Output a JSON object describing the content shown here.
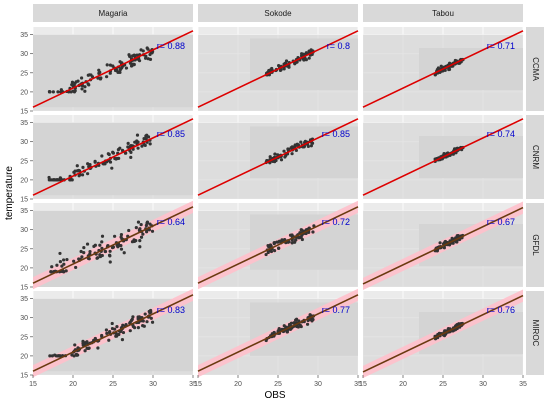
{
  "chart_data": {
    "type": "scatter",
    "xlabel": "OBS",
    "ylabel": "temperature",
    "xlim": [
      15,
      35
    ],
    "ylim": [
      15,
      37
    ],
    "x_ticks": [
      "15",
      "20",
      "25",
      "30",
      "35"
    ],
    "y_ticks": [
      "15",
      "20",
      "25",
      "30",
      "35"
    ],
    "columns": [
      "Magaria",
      "Sokode",
      "Tabou"
    ],
    "rows": [
      "CCMA",
      "CNRM",
      "GFDL",
      "MIROC"
    ],
    "colors": {
      "points": "#333333",
      "panel_bg": "#ebebeb",
      "data_range_band": "#d4d4d4",
      "fit_line": "#dd0000",
      "one_to_one_line": "#6b3a10",
      "pink_band": "#ffc0cb",
      "r_text": "#0000cc",
      "strip_bg": "#d9d9d9"
    },
    "panels": [
      {
        "column": "Magaria",
        "row": "CCMA",
        "r": "r= 0.88",
        "line": "fit",
        "obs_range": [
          17,
          30
        ],
        "model_range": [
          20,
          32
        ],
        "slope": 1.0,
        "intercept": 1.0,
        "spread": 1.6
      },
      {
        "column": "Sokode",
        "row": "CCMA",
        "r": "r= 0.8",
        "line": "fit",
        "obs_range": [
          23.5,
          29.5
        ],
        "model_range": [
          24.5,
          31
        ],
        "slope": 1.0,
        "intercept": 1.0,
        "spread": 0.8
      },
      {
        "column": "Tabou",
        "row": "CCMA",
        "r": "r= 0.71",
        "line": "fit",
        "obs_range": [
          24,
          27.5
        ],
        "model_range": [
          24.5,
          28.5
        ],
        "slope": 1.0,
        "intercept": 1.0,
        "spread": 0.6
      },
      {
        "column": "Magaria",
        "row": "CNRM",
        "r": "r= 0.85",
        "line": "fit",
        "obs_range": [
          17,
          30
        ],
        "model_range": [
          20,
          32
        ],
        "slope": 1.0,
        "intercept": 1.0,
        "spread": 1.6
      },
      {
        "column": "Sokode",
        "row": "CNRM",
        "r": "r= 0.85",
        "line": "fit",
        "obs_range": [
          23.5,
          29.5
        ],
        "model_range": [
          24.5,
          31
        ],
        "slope": 1.0,
        "intercept": 1.0,
        "spread": 0.8
      },
      {
        "column": "Tabou",
        "row": "CNRM",
        "r": "r= 0.74",
        "line": "fit",
        "obs_range": [
          24,
          27.5
        ],
        "model_range": [
          24.5,
          28.5
        ],
        "slope": 1.0,
        "intercept": 1.0,
        "spread": 0.6
      },
      {
        "column": "Magaria",
        "row": "GFDL",
        "r": "r= 0.64",
        "line": "identity",
        "obs_range": [
          17,
          30
        ],
        "model_range": [
          19,
          32
        ],
        "slope": 1.0,
        "intercept": 1.0,
        "spread": 2.4
      },
      {
        "column": "Sokode",
        "row": "GFDL",
        "r": "r= 0.72",
        "line": "identity",
        "obs_range": [
          23.5,
          29.5
        ],
        "model_range": [
          23.5,
          31
        ],
        "slope": 1.0,
        "intercept": 1.0,
        "spread": 1.1
      },
      {
        "column": "Tabou",
        "row": "GFDL",
        "r": "r= 0.67",
        "line": "identity",
        "obs_range": [
          24,
          27.5
        ],
        "model_range": [
          24.5,
          28.5
        ],
        "slope": 1.0,
        "intercept": 0.8,
        "spread": 0.6
      },
      {
        "column": "Magaria",
        "row": "MIROC",
        "r": "r= 0.83",
        "line": "identity",
        "obs_range": [
          17,
          30
        ],
        "model_range": [
          20,
          32
        ],
        "slope": 1.0,
        "intercept": 1.0,
        "spread": 1.7
      },
      {
        "column": "Sokode",
        "row": "MIROC",
        "r": "r= 0.77",
        "line": "identity",
        "obs_range": [
          23.5,
          29.5
        ],
        "model_range": [
          24,
          31
        ],
        "slope": 1.0,
        "intercept": 1.0,
        "spread": 0.9
      },
      {
        "column": "Tabou",
        "row": "MIROC",
        "r": "r= 0.76",
        "line": "identity",
        "obs_range": [
          24,
          27.5
        ],
        "model_range": [
          24.5,
          28.5
        ],
        "slope": 1.0,
        "intercept": 0.8,
        "spread": 0.6
      }
    ]
  }
}
